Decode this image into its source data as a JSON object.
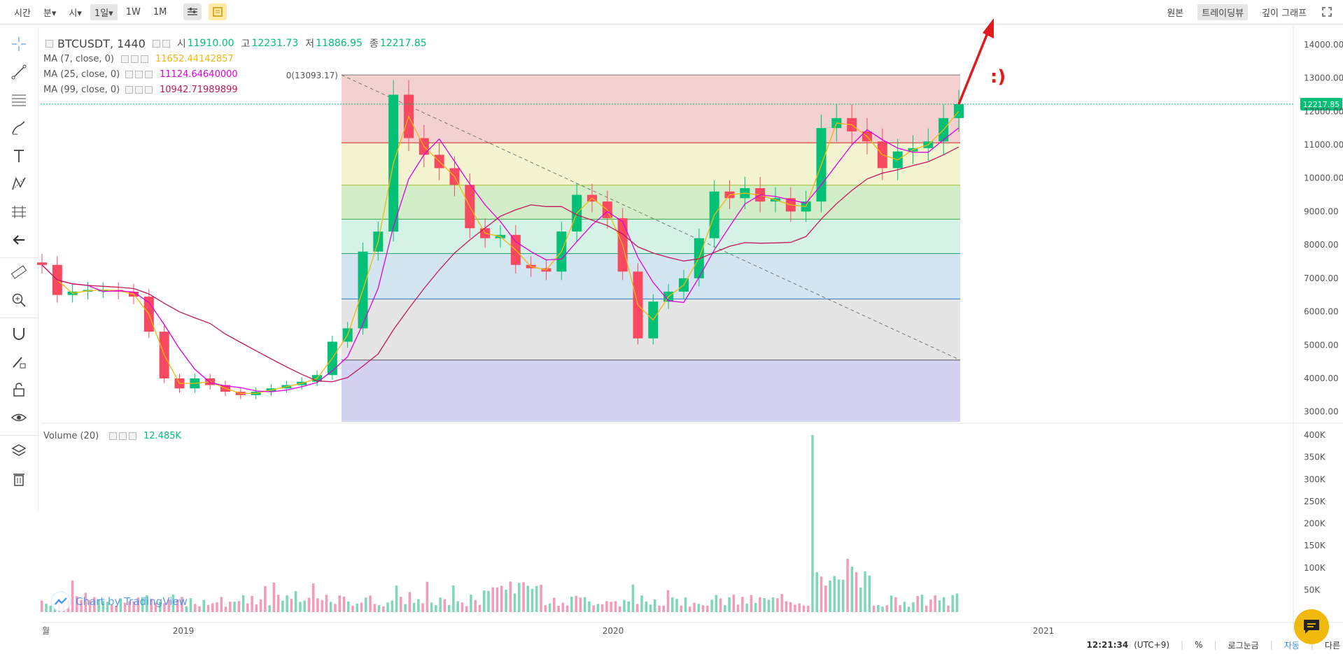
{
  "toolbar": {
    "time_label": "시간",
    "items": [
      "분▾",
      "시▾",
      "1일▾",
      "1W",
      "1M"
    ],
    "selected": "1일▾",
    "right_items": [
      "원본",
      "트레이딩뷰",
      "깊이 그래프"
    ],
    "right_selected": "트레이딩뷰"
  },
  "symbol": {
    "name": "BTCUSDT, 1440",
    "open_label": "시",
    "open": "11910.00",
    "high_label": "고",
    "high": "12231.73",
    "low_label": "저",
    "low": "11886.95",
    "close_label": "종",
    "close": "12217.85"
  },
  "indicators": [
    {
      "label": "MA (7, close, 0)",
      "value": "11652.44142857",
      "color": "#f0b90b"
    },
    {
      "label": "MA (25, close, 0)",
      "value": "11124.64640000",
      "color": "#e000e0"
    },
    {
      "label": "MA (99, close, 0)",
      "value": "10942.71989899",
      "color": "#c2185b"
    }
  ],
  "volume": {
    "label": "Volume (20)",
    "value": "12.485K",
    "color": "#02c076"
  },
  "fib": {
    "top_label": "0(13093.17)"
  },
  "annotation": ":)",
  "price_axis": [
    "14000.00",
    "13000.00",
    "12000.00",
    "11000.00",
    "10000.00",
    "9000.00",
    "8000.00",
    "7000.00",
    "6000.00",
    "5000.00",
    "4000.00",
    "3000.00"
  ],
  "last_price": "12217.85",
  "volume_axis": [
    "400K",
    "350K",
    "300K",
    "250K",
    "200K",
    "150K",
    "100K",
    "50K"
  ],
  "time_axis": [
    "월",
    "2019",
    "2020",
    "2021"
  ],
  "bottom": {
    "clock": "12:21:34",
    "tz": "(UTC+9)",
    "percent": "%",
    "log": "로그눈금",
    "auto": "자동",
    "more": "다른"
  },
  "watermark": "Chart by TradingView",
  "colors": {
    "up": "#02c076",
    "down": "#f84960",
    "accent": "#f0b90b",
    "arrow": "#e01b1b"
  },
  "chart_data": {
    "type": "candlestick",
    "symbol": "BTCUSDT",
    "interval": "1D",
    "x_range": [
      "2018-08",
      "2020-08-17"
    ],
    "ylim": [
      2700,
      14500
    ],
    "series": [
      {
        "name": "close",
        "values": [
          7400,
          6500,
          6600,
          6650,
          6650,
          6600,
          6450,
          5400,
          4000,
          3700,
          4000,
          3800,
          3600,
          3500,
          3600,
          3700,
          3800,
          3900,
          4100,
          5100,
          5500,
          7800,
          8400,
          12500,
          11200,
          10700,
          10300,
          9800,
          8500,
          8200,
          8300,
          7400,
          7300,
          7200,
          8400,
          9500,
          9300,
          8800,
          7200,
          5200,
          6300,
          6600,
          7000,
          8200,
          9600,
          9400,
          9700,
          9300,
          9400,
          9000,
          9300,
          11500,
          11800,
          11400,
          11100,
          10300,
          10800,
          10900,
          11100,
          11800,
          12217
        ]
      },
      {
        "name": "MA (7, close, 0)",
        "last": 11652.44
      },
      {
        "name": "MA (25, close, 0)",
        "last": 11124.65
      },
      {
        "name": "MA (99, close, 0)",
        "last": 10942.72
      }
    ],
    "fib_levels": [
      13093.17,
      11060,
      9790,
      8770,
      7740,
      6380,
      4550,
      2700
    ],
    "volume_max": 400000
  }
}
